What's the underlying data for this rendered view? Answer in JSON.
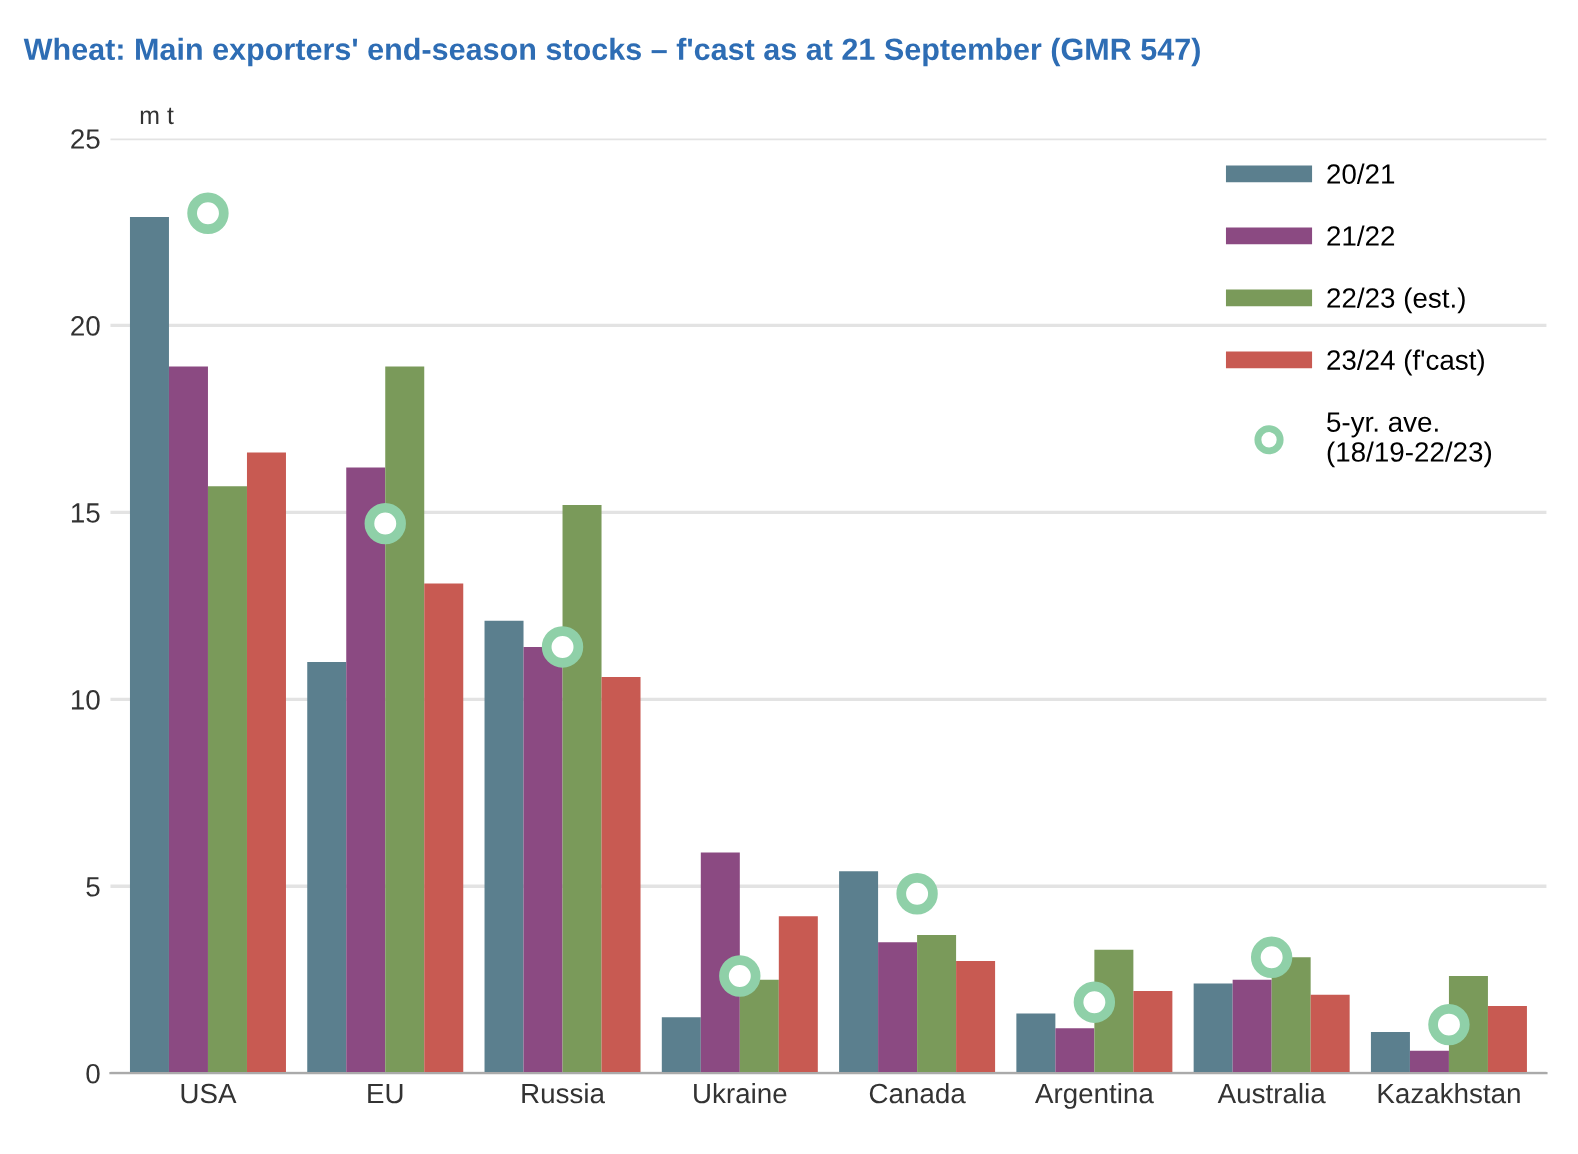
{
  "chart_data": {
    "type": "bar",
    "title": "Wheat: Main exporters' end-season stocks – f'cast as at 21 September (GMR 547)",
    "ylabel": "m t",
    "categories": [
      "USA",
      "EU",
      "Russia",
      "Ukraine",
      "Canada",
      "Argentina",
      "Australia",
      "Kazakhstan"
    ],
    "series": [
      {
        "name": "20/21",
        "color": "#5b7f8e",
        "values": [
          22.9,
          11.0,
          12.1,
          1.5,
          5.4,
          1.6,
          2.4,
          1.1
        ]
      },
      {
        "name": "21/22",
        "color": "#8b4a82",
        "values": [
          18.9,
          16.2,
          11.4,
          5.9,
          3.5,
          1.2,
          2.5,
          0.6
        ]
      },
      {
        "name": "22/23 (est.)",
        "color": "#7a9a5a",
        "values": [
          15.7,
          18.9,
          15.2,
          2.5,
          3.7,
          3.3,
          3.1,
          2.6
        ]
      },
      {
        "name": "23/24 (f'cast)",
        "color": "#c85a52",
        "values": [
          16.6,
          13.1,
          10.6,
          4.2,
          3.0,
          2.2,
          2.1,
          1.8
        ]
      },
      {
        "name": "5-yr. ave.\n(18/19-22/23)",
        "type": "scatter",
        "marker": "circle",
        "color": "#8fd0a8",
        "x": [
          "USA",
          "EU",
          "Russia",
          "Ukraine",
          "Canada",
          "Argentina",
          "Australia",
          "Kazakhstan"
        ],
        "values": [
          23.0,
          14.7,
          11.4,
          2.6,
          4.8,
          1.9,
          3.1,
          1.3
        ]
      }
    ],
    "ylim": [
      0,
      25
    ],
    "yticks": [
      0,
      5,
      10,
      15,
      20,
      25
    ],
    "grid": "y",
    "legend": "top right"
  }
}
